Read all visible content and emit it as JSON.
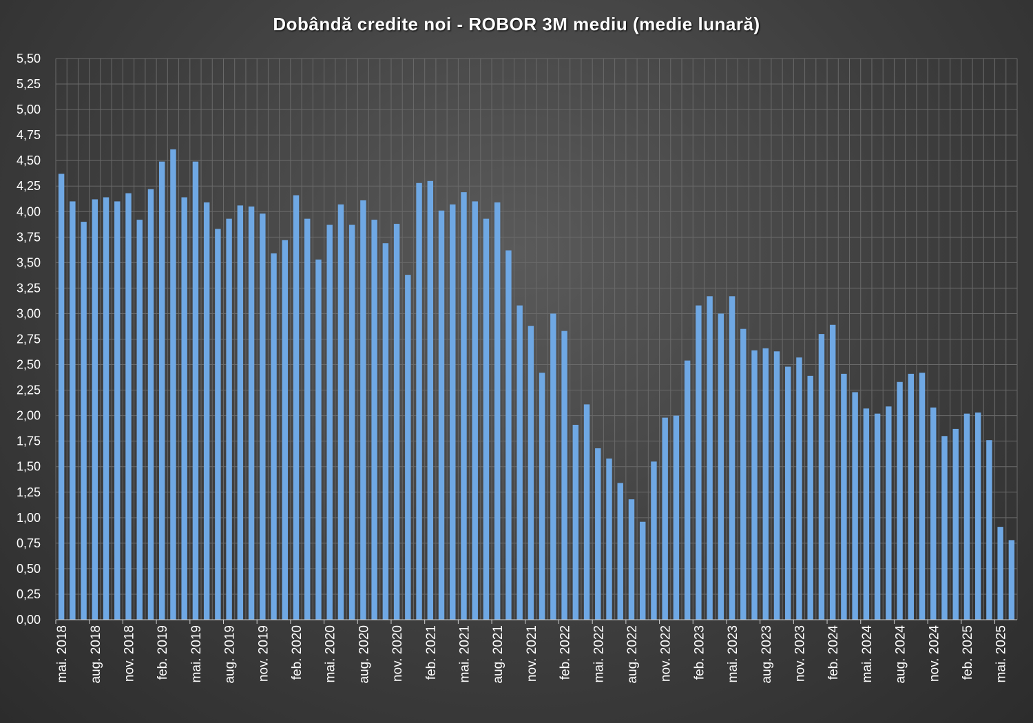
{
  "chart_data": {
    "type": "bar",
    "title": "Dobândă credite noi - ROBOR 3M mediu (medie lunară)",
    "xlabel": "",
    "ylabel": "",
    "ylim": [
      0,
      5.5
    ],
    "ytick_step": 0.25,
    "ytick_labels": [
      "0,00",
      "0,25",
      "0,50",
      "0,75",
      "1,00",
      "1,25",
      "1,50",
      "1,75",
      "2,00",
      "2,25",
      "2,50",
      "2,75",
      "3,00",
      "3,25",
      "3,50",
      "3,75",
      "4,00",
      "4,25",
      "4,50",
      "4,75",
      "5,00",
      "5,25",
      "5,50"
    ],
    "grid": true,
    "bar_color": "#6fa8e4",
    "categories": [
      "mai. 2018",
      "iun. 2018",
      "iul. 2018",
      "aug. 2018",
      "sept. 2018",
      "oct. 2018",
      "nov. 2018",
      "dec. 2018",
      "ian. 2019",
      "feb. 2019",
      "mar. 2019",
      "apr. 2019",
      "mai. 2019",
      "iun. 2019",
      "iul. 2019",
      "aug. 2019",
      "sept. 2019",
      "oct. 2019",
      "nov. 2019",
      "dec. 2019",
      "ian. 2020",
      "feb. 2020",
      "mar. 2020",
      "apr. 2020",
      "mai. 2020",
      "iun. 2020",
      "iul. 2020",
      "aug. 2020",
      "sept. 2020",
      "oct. 2020",
      "nov. 2020",
      "dec. 2020",
      "ian. 2021",
      "feb. 2021",
      "mar. 2021",
      "apr. 2021",
      "mai. 2021",
      "iun. 2021",
      "iul. 2021",
      "aug. 2021",
      "sept. 2021",
      "oct. 2021",
      "nov. 2021",
      "dec. 2021",
      "ian. 2022",
      "feb. 2022",
      "mar. 2022",
      "apr. 2022",
      "mai. 2022",
      "iun. 2022",
      "iul. 2022",
      "aug. 2022",
      "sept. 2022",
      "oct. 2022",
      "nov. 2022",
      "dec. 2022",
      "ian. 2023",
      "feb. 2023",
      "mar. 2023",
      "apr. 2023",
      "mai. 2023",
      "iun. 2023",
      "iul. 2023",
      "aug. 2023",
      "sept. 2023",
      "oct. 2023",
      "nov. 2023",
      "dec. 2023",
      "ian. 2024",
      "feb. 2024",
      "mar. 2024",
      "apr. 2024",
      "mai. 2024",
      "iun. 2024",
      "iul. 2024",
      "aug. 2024",
      "sept. 2024",
      "oct. 2024",
      "nov. 2024",
      "dec. 2024",
      "ian. 2025",
      "feb. 2025",
      "mar. 2025",
      "apr. 2025",
      "mai. 2025",
      "iun. 2025"
    ],
    "values": [
      4.37,
      4.1,
      3.9,
      4.12,
      4.14,
      4.1,
      4.18,
      3.92,
      4.22,
      4.49,
      4.61,
      4.14,
      4.49,
      4.09,
      3.83,
      3.93,
      4.06,
      4.05,
      3.98,
      3.59,
      3.72,
      4.16,
      3.93,
      3.53,
      3.87,
      4.07,
      3.87,
      4.11,
      3.92,
      3.69,
      3.88,
      3.38,
      4.28,
      4.3,
      4.01,
      4.07,
      4.19,
      4.1,
      3.93,
      4.09,
      3.62,
      3.08,
      2.88,
      2.42,
      3.0,
      2.83,
      1.91,
      2.11,
      1.68,
      1.58,
      1.34,
      1.18,
      0.96,
      1.55,
      1.98,
      2.0,
      2.54,
      3.08,
      3.17,
      3.0,
      3.17,
      2.85,
      2.64,
      2.66,
      2.63,
      2.48,
      2.57,
      2.39,
      2.8,
      2.89,
      2.41,
      2.23,
      2.07,
      2.02,
      2.09,
      2.33,
      2.41,
      2.42,
      2.08,
      1.8,
      1.87,
      2.02,
      2.03,
      1.76,
      0.91,
      0.78
    ],
    "x_tick_labels_shown": [
      "mai. 2018",
      "aug. 2018",
      "nov. 2018",
      "feb. 2019",
      "mai. 2019",
      "aug. 2019",
      "nov. 2019",
      "feb. 2020",
      "mai. 2020",
      "aug. 2020",
      "nov. 2020",
      "feb. 2021",
      "mai. 2021",
      "aug. 2021",
      "nov. 2021",
      "feb. 2022",
      "mai. 2022",
      "aug. 2022",
      "nov. 2022",
      "feb. 2023",
      "mai. 2023",
      "aug. 2023",
      "nov. 2023",
      "feb. 2024",
      "mai. 2024",
      "aug. 2024",
      "nov. 2024",
      "feb. 2025",
      "mai. 2025"
    ]
  }
}
